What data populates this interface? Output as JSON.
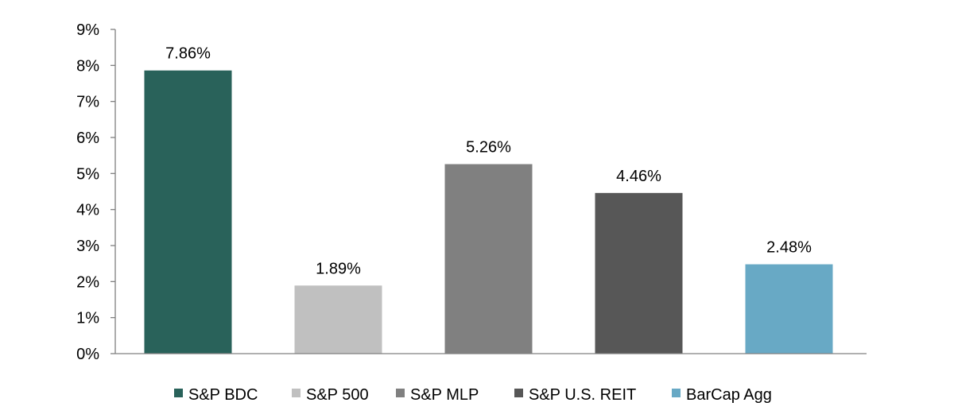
{
  "chart_data": {
    "type": "bar",
    "title": "",
    "xlabel": "",
    "ylabel": "",
    "ylim": [
      0,
      9
    ],
    "y_ticks": [
      "0%",
      "1%",
      "2%",
      "3%",
      "4%",
      "5%",
      "6%",
      "7%",
      "8%",
      "9%"
    ],
    "grid": false,
    "legend_position": "bottom",
    "series": [
      {
        "name": "S&P BDC",
        "value": 7.86,
        "label": "7.86%",
        "color": "#29625a"
      },
      {
        "name": "S&P 500",
        "value": 1.89,
        "label": "1.89%",
        "color": "#c0c0c0"
      },
      {
        "name": "S&P MLP",
        "value": 5.26,
        "label": "5.26%",
        "color": "#808080"
      },
      {
        "name": "S&P U.S. REIT",
        "value": 4.46,
        "label": "4.46%",
        "color": "#575757"
      },
      {
        "name": "BarCap Agg",
        "value": 2.48,
        "label": "2.48%",
        "color": "#68a9c5"
      }
    ]
  }
}
